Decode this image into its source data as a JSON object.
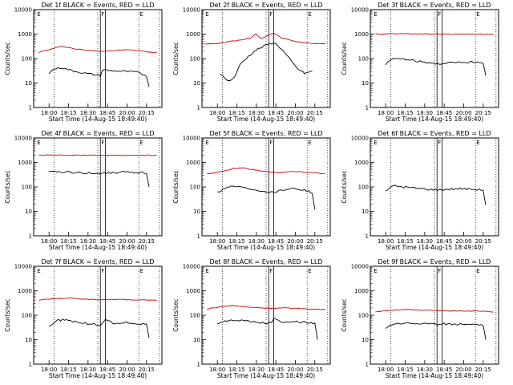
{
  "chart_data": [
    {
      "type": "line",
      "title": "Det 1f BLACK = Events, RED = LLD",
      "xlabel": "Start Time (14-Aug-15 18:49:40)",
      "ylabel": "Counts/sec",
      "x_ticks": [
        "18:00",
        "18:15",
        "18:30",
        "18:45",
        "20:00",
        "20:15"
      ],
      "y_ticks": [
        "1",
        "10",
        "100",
        "1000",
        "10000"
      ],
      "ylim": [
        1,
        10000
      ],
      "yscale": "log",
      "series": [
        {
          "color": "#d00000",
          "x_frac": [
            0.04,
            0.12,
            0.22,
            0.32,
            0.44,
            0.52,
            0.62,
            0.72,
            0.8,
            0.88,
            0.96
          ],
          "values": [
            180,
            230,
            320,
            250,
            210,
            200,
            210,
            230,
            215,
            190,
            175
          ]
        },
        {
          "color": "#000000",
          "x_frac": [
            0.12,
            0.16,
            0.22,
            0.3,
            0.4,
            0.52,
            0.54,
            0.6,
            0.7,
            0.8,
            0.88,
            0.9
          ],
          "values": [
            25,
            38,
            42,
            32,
            25,
            20,
            35,
            32,
            30,
            28,
            20,
            7
          ]
        }
      ]
    },
    {
      "type": "line",
      "title": "Det 2f BLACK = Events, RED = LLD",
      "xlabel": "Start Time (14-Aug-15 18:49:40)",
      "ylabel": "Counts/sec",
      "x_ticks": [
        "18:00",
        "18:15",
        "18:30",
        "18:45",
        "20:00",
        "20:15"
      ],
      "y_ticks": [
        "1",
        "10",
        "100",
        "1000",
        "10000"
      ],
      "ylim": [
        1,
        10000
      ],
      "yscale": "log",
      "series": [
        {
          "color": "#d00000",
          "x_frac": [
            0.02,
            0.12,
            0.22,
            0.32,
            0.38,
            0.42,
            0.46,
            0.52,
            0.56,
            0.62,
            0.72,
            0.82,
            0.96
          ],
          "values": [
            380,
            420,
            500,
            600,
            700,
            1000,
            650,
            900,
            1100,
            700,
            500,
            430,
            400
          ]
        },
        {
          "color": "#000000",
          "x_frac": [
            0.14,
            0.18,
            0.22,
            0.26,
            0.3,
            0.36,
            0.42,
            0.5,
            0.56,
            0.62,
            0.68,
            0.74,
            0.8,
            0.86
          ],
          "values": [
            25,
            15,
            12,
            20,
            60,
            120,
            220,
            350,
            450,
            250,
            100,
            40,
            25,
            30
          ]
        }
      ]
    },
    {
      "type": "line",
      "title": "Det 3f BLACK = Events, RED = LLD",
      "xlabel": "Start Time (14-Aug-15 18:49:40)",
      "ylabel": "Counts/sec",
      "x_ticks": [
        "18:00",
        "18:15",
        "18:30",
        "18:45",
        "20:00",
        "20:15"
      ],
      "y_ticks": [
        "1",
        "10",
        "100",
        "1000",
        "10000"
      ],
      "ylim": [
        1,
        10000
      ],
      "yscale": "log",
      "series": [
        {
          "color": "#d00000",
          "x_frac": [
            0.04,
            0.2,
            0.4,
            0.6,
            0.8,
            0.96
          ],
          "values": [
            1000,
            1050,
            1020,
            1000,
            1000,
            980
          ]
        },
        {
          "color": "#000000",
          "x_frac": [
            0.12,
            0.18,
            0.26,
            0.34,
            0.44,
            0.54,
            0.6,
            0.7,
            0.8,
            0.88,
            0.9
          ],
          "values": [
            60,
            100,
            95,
            80,
            70,
            60,
            65,
            70,
            75,
            60,
            20
          ]
        }
      ]
    },
    {
      "type": "line",
      "title": "Det 4f BLACK = Events, RED = LLD",
      "xlabel": "Start Time (14-Aug-15 18:49:40)",
      "ylabel": "Counts/sec",
      "x_ticks": [
        "18:00",
        "18:15",
        "18:30",
        "18:45",
        "20:00",
        "20:15"
      ],
      "y_ticks": [
        "1",
        "10",
        "100",
        "1000",
        "10000"
      ],
      "ylim": [
        1,
        10000
      ],
      "yscale": "log",
      "series": [
        {
          "color": "#d00000",
          "x_frac": [
            0.04,
            0.2,
            0.4,
            0.6,
            0.8,
            0.96
          ],
          "values": [
            2000,
            2000,
            1950,
            1950,
            1950,
            1950
          ]
        },
        {
          "color": "#000000",
          "x_frac": [
            0.12,
            0.2,
            0.3,
            0.4,
            0.5,
            0.6,
            0.7,
            0.8,
            0.88,
            0.9
          ],
          "values": [
            400,
            420,
            390,
            370,
            360,
            380,
            400,
            390,
            380,
            100
          ]
        }
      ]
    },
    {
      "type": "line",
      "title": "Det 5f BLACK = Events, RED = LLD",
      "xlabel": "Start Time (14-Aug-15 18:49:40)",
      "ylabel": "Counts/sec",
      "x_ticks": [
        "18:00",
        "18:15",
        "18:30",
        "18:45",
        "20:00",
        "20:15"
      ],
      "y_ticks": [
        "1",
        "10",
        "100",
        "1000",
        "10000"
      ],
      "ylim": [
        1,
        10000
      ],
      "yscale": "log",
      "series": [
        {
          "color": "#d00000",
          "x_frac": [
            0.04,
            0.14,
            0.24,
            0.32,
            0.4,
            0.5,
            0.6,
            0.7,
            0.8,
            0.96
          ],
          "values": [
            350,
            400,
            550,
            600,
            500,
            420,
            380,
            420,
            400,
            350
          ]
        },
        {
          "color": "#000000",
          "x_frac": [
            0.12,
            0.18,
            0.24,
            0.3,
            0.4,
            0.5,
            0.56,
            0.6,
            0.7,
            0.8,
            0.86,
            0.88
          ],
          "values": [
            60,
            90,
            110,
            100,
            80,
            65,
            60,
            70,
            90,
            75,
            55,
            12
          ]
        }
      ]
    },
    {
      "type": "line",
      "title": "Det 6f BLACK = Events, RED = LLD",
      "xlabel": "Start Time (14-Aug-15 18:49:40)",
      "ylabel": "Counts/sec",
      "x_ticks": [
        "18:00",
        "18:15",
        "18:30",
        "18:45",
        "20:00",
        "20:15"
      ],
      "y_ticks": [
        "1",
        "10",
        "100",
        "1000",
        "10000"
      ],
      "ylim": [
        1,
        10000
      ],
      "yscale": "log",
      "series": [
        {
          "color": "#000000",
          "x_frac": [
            0.12,
            0.18,
            0.26,
            0.34,
            0.44,
            0.54,
            0.6,
            0.7,
            0.8,
            0.88,
            0.9
          ],
          "values": [
            70,
            110,
            100,
            90,
            80,
            75,
            80,
            85,
            80,
            75,
            18
          ]
        }
      ]
    },
    {
      "type": "line",
      "title": "Det 7f BLACK = Events, RED = LLD",
      "xlabel": "Start Time (14-Aug-15 18:49:40)",
      "ylabel": "Counts/sec",
      "x_ticks": [
        "18:00",
        "18:15",
        "18:30",
        "18:45",
        "20:00",
        "20:15"
      ],
      "y_ticks": [
        "1",
        "10",
        "100",
        "1000",
        "10000"
      ],
      "ylim": [
        1,
        10000
      ],
      "yscale": "log",
      "series": [
        {
          "color": "#d00000",
          "x_frac": [
            0.04,
            0.16,
            0.28,
            0.4,
            0.52,
            0.64,
            0.76,
            0.88,
            0.96
          ],
          "values": [
            420,
            480,
            500,
            450,
            430,
            440,
            430,
            420,
            400
          ]
        },
        {
          "color": "#000000",
          "x_frac": [
            0.12,
            0.18,
            0.24,
            0.32,
            0.42,
            0.52,
            0.56,
            0.62,
            0.72,
            0.82,
            0.88,
            0.9
          ],
          "values": [
            35,
            60,
            65,
            55,
            45,
            40,
            70,
            45,
            50,
            45,
            40,
            12
          ]
        }
      ]
    },
    {
      "type": "line",
      "title": "Det 8f BLACK = Events, RED = LLD",
      "xlabel": "Start Time (14-Aug-15 18:49:40)",
      "ylabel": "Counts/sec",
      "x_ticks": [
        "18:00",
        "18:15",
        "18:30",
        "18:45",
        "20:00",
        "20:15"
      ],
      "y_ticks": [
        "1",
        "10",
        "100",
        "1000",
        "10000"
      ],
      "ylim": [
        1,
        10000
      ],
      "yscale": "log",
      "series": [
        {
          "color": "#d00000",
          "x_frac": [
            0.04,
            0.14,
            0.24,
            0.34,
            0.44,
            0.54,
            0.64,
            0.74,
            0.84,
            0.96
          ],
          "values": [
            180,
            220,
            250,
            220,
            200,
            190,
            200,
            190,
            180,
            170
          ]
        },
        {
          "color": "#000000",
          "x_frac": [
            0.12,
            0.18,
            0.26,
            0.34,
            0.44,
            0.54,
            0.56,
            0.62,
            0.72,
            0.82,
            0.88,
            0.9
          ],
          "values": [
            45,
            60,
            65,
            60,
            50,
            48,
            75,
            50,
            55,
            50,
            45,
            10
          ]
        }
      ]
    },
    {
      "type": "line",
      "title": "Det 9f BLACK = Events, RED = LLD",
      "xlabel": "Start Time (14-Aug-15 18:49:40)",
      "ylabel": "Counts/sec",
      "x_ticks": [
        "18:00",
        "18:15",
        "18:30",
        "18:45",
        "20:00",
        "20:15"
      ],
      "y_ticks": [
        "1",
        "10",
        "100",
        "1000",
        "10000"
      ],
      "ylim": [
        1,
        10000
      ],
      "yscale": "log",
      "series": [
        {
          "color": "#d00000",
          "x_frac": [
            0.04,
            0.16,
            0.28,
            0.4,
            0.52,
            0.64,
            0.76,
            0.88,
            0.96
          ],
          "values": [
            140,
            160,
            170,
            160,
            155,
            150,
            150,
            145,
            135
          ]
        },
        {
          "color": "#000000",
          "x_frac": [
            0.12,
            0.18,
            0.28,
            0.4,
            0.52,
            0.56,
            0.62,
            0.72,
            0.82,
            0.88,
            0.9
          ],
          "values": [
            30,
            45,
            48,
            45,
            42,
            45,
            43,
            44,
            42,
            40,
            10
          ]
        }
      ]
    }
  ]
}
